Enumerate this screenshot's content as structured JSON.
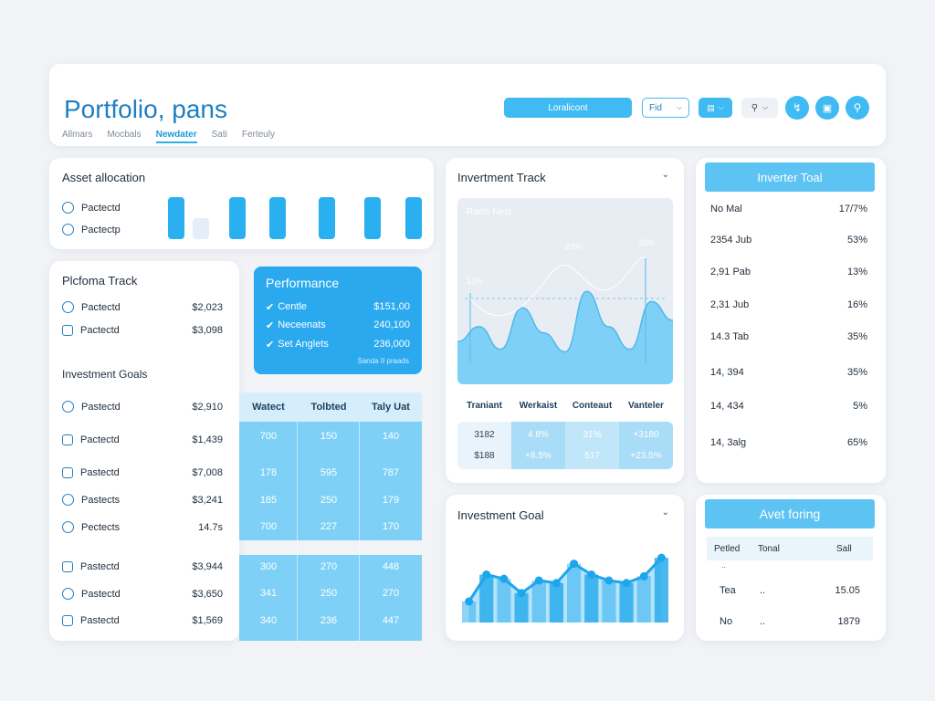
{
  "header": {
    "title": "Portfolio, pans",
    "tabs": [
      "Allmars",
      "Mocbals",
      "Newdater",
      "Sati",
      "Ferteuly"
    ],
    "active_tab": 2,
    "primary_button": "Loralicont",
    "select_label": "Fid",
    "icon_select": "icon-select",
    "search_select": "search-select"
  },
  "asset_allocation": {
    "title": "Asset allocation",
    "items": [
      "Pactectd",
      "Pactectp"
    ],
    "bar_levels": [
      1.0,
      0.5,
      1.0,
      1.0,
      1.0,
      1.0,
      1.0
    ]
  },
  "portfolio_track": {
    "title": "Plcfoma Track",
    "rows": [
      {
        "label": "Pactectd",
        "value": "$2,023"
      },
      {
        "label": "Pactectd",
        "value": "$3,098"
      }
    ]
  },
  "performance": {
    "title": "Performance",
    "rows": [
      {
        "label": "Centle",
        "value": "$151,00"
      },
      {
        "label": "Neceenats",
        "value": "240,100"
      },
      {
        "label": "Set Anglets",
        "value": "236,000"
      }
    ],
    "footer": "Sanda II praads"
  },
  "investment_goals_left": {
    "title": "Investment Goals",
    "rows": [
      {
        "label": "Pastectd",
        "value": "$2,910"
      },
      {
        "label": "Pactectd",
        "value": "$1,439"
      },
      {
        "label": "Pastectd",
        "value": "$7,008"
      },
      {
        "label": "Pastects",
        "value": "$3,241"
      },
      {
        "label": "Pectects",
        "value": "14.7s"
      },
      {
        "label": "Pastectd",
        "value": "$3,944"
      },
      {
        "label": "Pastectd",
        "value": "$3,650"
      },
      {
        "label": "Pastectd",
        "value": "$1,569"
      }
    ]
  },
  "goals_table": {
    "headers": [
      "Watect",
      "Tolbted",
      "Taly Uat"
    ],
    "rows": [
      [
        "700",
        "150",
        "140"
      ],
      [
        "178",
        "595",
        "787"
      ],
      [
        "185",
        "250",
        "179"
      ],
      [
        "700",
        "227",
        "170"
      ],
      [
        "300",
        "270",
        "448"
      ],
      [
        "341",
        "250",
        "270"
      ],
      [
        "340",
        "236",
        "447"
      ]
    ]
  },
  "investment_track": {
    "title": "Invertment Track",
    "chart_title": "Racts Nest",
    "point_labels": [
      "13%",
      "23%",
      "33%"
    ],
    "chart_data": {
      "type": "area",
      "title": "Racts Nest",
      "x": [
        0,
        1,
        2,
        3,
        4,
        5,
        6,
        7,
        8,
        9,
        10
      ],
      "values": [
        28,
        40,
        22,
        55,
        35,
        20,
        68,
        40,
        22,
        60,
        45
      ],
      "ylim": [
        0,
        100
      ]
    },
    "summary_headers": [
      "Traniant",
      "Werkaist",
      "Conteaut",
      "Vanteler"
    ],
    "summary_rows": [
      [
        "3182",
        "4.8%",
        "31%",
        "+3180"
      ],
      [
        "$188",
        "+8.5%",
        "517",
        "+23.5%"
      ]
    ]
  },
  "investor_total": {
    "title": "Inverter Toal",
    "rows": [
      {
        "label": "No Mal",
        "value": "17/7%"
      },
      {
        "label": "2354 Jub",
        "value": "53%"
      },
      {
        "label": "2,91 Pab",
        "value": "13%"
      },
      {
        "label": "2,31 Jub",
        "value": "16%"
      },
      {
        "label": "14.3 Tab",
        "value": "35%"
      },
      {
        "label": "14, 394",
        "value": "35%"
      },
      {
        "label": "14, 434",
        "value": "5%"
      },
      {
        "label": "14, 3alg",
        "value": "65%"
      }
    ]
  },
  "investment_goal": {
    "title": "Investment Goal",
    "chart_data": {
      "type": "bar",
      "categories": [
        "1",
        "2",
        "3",
        "4",
        "5",
        "6",
        "7",
        "8",
        "9",
        "10",
        "11",
        "12"
      ],
      "values": [
        25,
        57,
        52,
        35,
        50,
        47,
        70,
        57,
        50,
        47,
        55,
        77
      ],
      "line": [
        25,
        57,
        52,
        35,
        50,
        47,
        70,
        57,
        50,
        47,
        55,
        77
      ],
      "ylim": [
        0,
        100
      ]
    }
  },
  "avet_foring": {
    "title": "Avet foring",
    "headers": [
      "Petled",
      "Tonal",
      "Sall"
    ],
    "rows": [
      [
        "..",
        "",
        ""
      ],
      [
        "Tea",
        "..",
        "15.05"
      ],
      [
        "No",
        "..",
        "1879"
      ]
    ]
  },
  "colors": {
    "accent": "#2ab0f0",
    "accent_light": "#7fd0f6",
    "title_blue": "#1e7fc1",
    "panel_bg": "#ffffff",
    "page_bg": "#f1f3f6"
  }
}
